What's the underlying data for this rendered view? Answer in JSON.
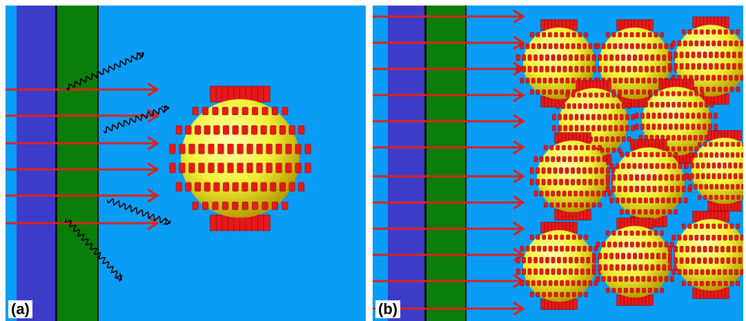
{
  "panels": [
    {
      "id": "a",
      "label": "(a)"
    },
    {
      "id": "b",
      "label": "(b)"
    }
  ],
  "colors": {
    "background": "#0a9df5",
    "blue_layer": "#3c3cc8",
    "green_layer": "#0b7d0b",
    "arrow": "#e0201a",
    "sphere": "#f2f23a",
    "spike": "#e61a1a",
    "scattered_wave": "#000000"
  },
  "icons": [
    "sphere-with-spikes",
    "straight-arrow",
    "wavy-arrow"
  ]
}
